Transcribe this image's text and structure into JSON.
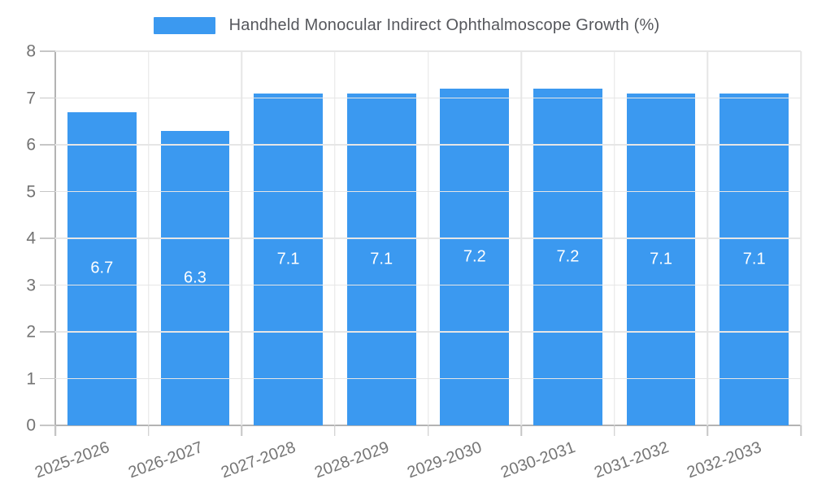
{
  "legend": {
    "label": "Handheld Monocular Indirect Ophthalmoscope Growth (%)",
    "swatch_color": "#3b99f0"
  },
  "chart_data": {
    "type": "bar",
    "title": "Handheld Monocular Indirect Ophthalmoscope Growth (%)",
    "xlabel": "",
    "ylabel": "",
    "categories": [
      "2025-2026",
      "2026-2027",
      "2027-2028",
      "2028-2029",
      "2029-2030",
      "2030-2031",
      "2031-2032",
      "2032-2033"
    ],
    "values": [
      6.7,
      6.3,
      7.1,
      7.1,
      7.2,
      7.2,
      7.1,
      7.1
    ],
    "bar_labels": [
      "6.7",
      "6.3",
      "7.1",
      "7.1",
      "7.2",
      "7.2",
      "7.1",
      "7.1"
    ],
    "ylim": [
      0,
      8
    ],
    "ytick_step": 1,
    "grid": true,
    "legend_position": "top",
    "x_label_rotation_deg": -20,
    "colors": {
      "bar": "#3b99f0",
      "bar_label": "#ffffff",
      "gridline": "#e6e6e6",
      "axis_line": "#b3b3b3",
      "tick": "#c6c6c6",
      "axis_text": "#737373",
      "title_text": "#55575c",
      "background": "#ffffff"
    }
  }
}
